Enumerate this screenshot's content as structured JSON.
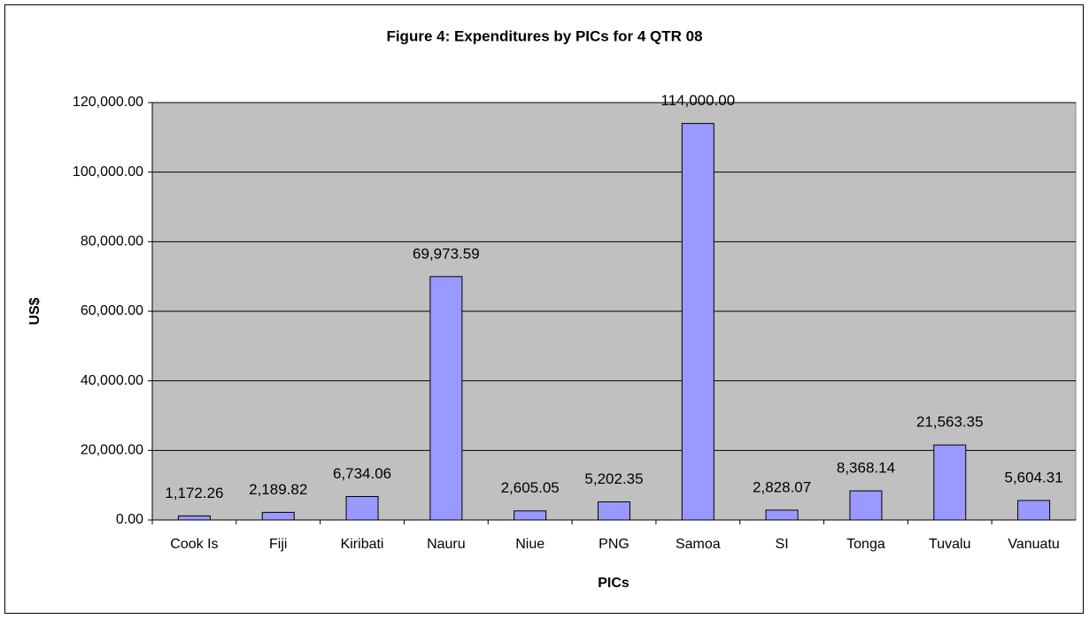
{
  "chart_data": {
    "type": "bar",
    "title": "Figure 4: Expenditures by PICs for 4 QTR 08",
    "x_label": "PICs",
    "y_label": "US$",
    "categories": [
      "Cook Is",
      "Fiji",
      "Kiribati",
      "Nauru",
      "Niue",
      "PNG",
      "Samoa",
      "SI",
      "Tonga",
      "Tuvalu",
      "Vanuatu"
    ],
    "values": [
      1172.26,
      2189.82,
      6734.06,
      69973.59,
      2605.05,
      5202.35,
      114000.0,
      2828.07,
      8368.14,
      21563.35,
      5604.31
    ],
    "value_labels": [
      "1,172.26",
      "2,189.82",
      "6,734.06",
      "69,973.59",
      "2,605.05",
      "5,202.35",
      "114,000.00",
      "2,828.07",
      "8,368.14",
      "21,563.35",
      "5,604.31"
    ],
    "color": "#9999ff",
    "ylim": [
      0,
      120000
    ],
    "yticks": [
      {
        "value": 0,
        "label": "0.00"
      },
      {
        "value": 20000,
        "label": "20,000.00"
      },
      {
        "value": 40000,
        "label": "40,000.00"
      },
      {
        "value": 60000,
        "label": "60,000.00"
      },
      {
        "value": 80000,
        "label": "80,000.00"
      },
      {
        "value": 100000,
        "label": "100,000.00"
      },
      {
        "value": 120000,
        "label": "120,000.00"
      }
    ],
    "grid": true
  }
}
